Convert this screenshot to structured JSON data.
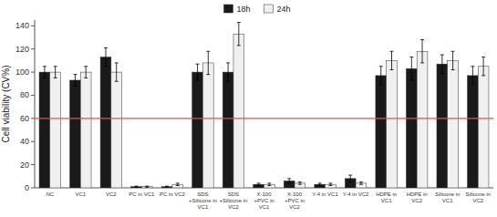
{
  "chart_data": {
    "type": "bar",
    "categories": [
      "NC",
      "VC1",
      "VC2",
      "PC in VC1",
      "PC in VC2",
      "SDS\n+Silicone in\nVC1",
      "SDS\n+Silicone in\nVC2",
      "X-100\n+PVC in\nVC1",
      "X-100\n+PVC in\nVC2",
      "Y-4 in VC1",
      "Y-4 in VC2",
      "HDPE in\nVC1",
      "HDPE in\nVC2",
      "Silicone in\nVC1",
      "Silicone in\nVC2"
    ],
    "series": [
      {
        "name": "18h",
        "color": "#1a1a1a",
        "values": [
          100,
          93,
          113,
          1,
          1,
          100,
          100,
          3,
          6,
          3,
          8,
          97,
          103,
          107,
          97
        ],
        "errors": [
          5,
          5,
          8,
          0.5,
          0.5,
          7,
          8,
          1,
          2,
          1,
          3,
          8,
          10,
          8,
          8
        ]
      },
      {
        "name": "24h",
        "color": "#f0f0f0",
        "values": [
          100,
          100,
          100,
          1,
          3,
          108,
          133,
          3,
          4,
          3,
          4,
          110,
          118,
          110,
          105
        ],
        "errors": [
          5,
          5,
          8,
          0.5,
          1,
          10,
          10,
          1,
          1,
          1,
          1,
          8,
          10,
          8,
          8
        ]
      }
    ],
    "reference_line": {
      "y": 60,
      "color": "#e05050"
    },
    "ylabel": "Cell viability (CV%)",
    "ylim": [
      0,
      145
    ],
    "yticks": [
      0,
      20,
      40,
      60,
      80,
      100,
      120,
      140
    ],
    "legend": "top",
    "grid": false
  }
}
